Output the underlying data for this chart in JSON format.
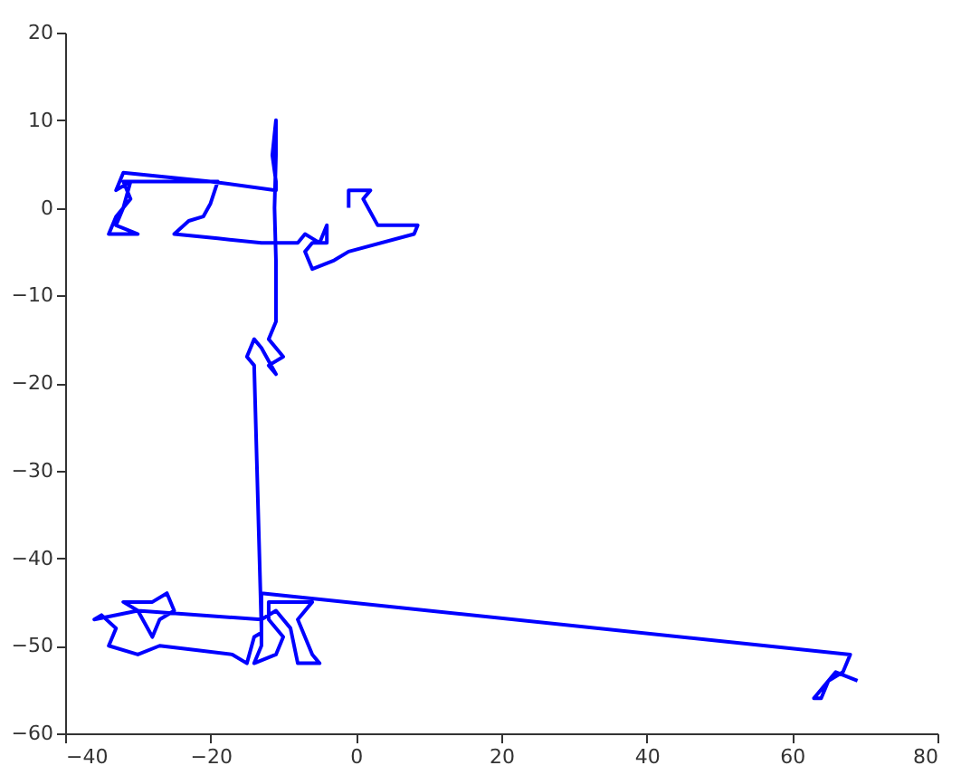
{
  "chart_data": {
    "type": "line",
    "xlim": [
      -40,
      80
    ],
    "ylim": [
      -60,
      20
    ],
    "xticks": [
      -40,
      -20,
      0,
      20,
      40,
      60,
      80
    ],
    "yticks": [
      -60,
      -50,
      -40,
      -30,
      -20,
      -10,
      0,
      10,
      20
    ],
    "grid": false,
    "marker": "none",
    "line_style": "solid",
    "series": [
      {
        "color": "#0000ff",
        "x": [
          -1,
          -1,
          2,
          1,
          3,
          8.5,
          8,
          -1,
          -3,
          -6,
          -7,
          -6,
          -4,
          -4,
          -5,
          -6,
          -7,
          -8,
          -13,
          -19,
          -25,
          -23,
          -21,
          -20,
          -19,
          -28,
          -32,
          -31,
          -33,
          -34,
          -30,
          -33,
          -32,
          -31,
          -33,
          -32,
          -20,
          -11,
          -11,
          -11.5,
          -11,
          -11,
          -11.2,
          -11,
          -11,
          -12,
          -10,
          -12,
          -11,
          -13,
          -14,
          -15,
          -14,
          -13,
          -13,
          -14,
          -11,
          -10,
          -12,
          -12,
          -6,
          -8,
          -6,
          -5,
          -8,
          -9,
          -11,
          -13,
          -30,
          -32,
          -28,
          -26,
          -25,
          -27,
          -28,
          -30,
          -36,
          -35,
          -33,
          -34,
          -30,
          -27,
          -22,
          -17,
          -15,
          -14,
          -13,
          -13,
          68,
          67,
          65,
          64,
          63,
          66,
          69
        ],
        "values": [
          0,
          2,
          2,
          1,
          -2,
          -2,
          -3,
          -5,
          -6,
          -7,
          -5,
          -4,
          -4,
          -2,
          -4,
          -3.5,
          -3,
          -4,
          -4,
          -3.5,
          -3,
          -1.5,
          -1,
          0.5,
          3,
          3,
          3,
          1,
          -1,
          -3,
          -3,
          -2,
          0,
          3,
          2,
          4,
          3,
          2,
          3,
          6,
          10,
          6,
          0,
          -6,
          -13,
          -15,
          -17,
          -18,
          -19,
          -16,
          -15,
          -17,
          -18,
          -48,
          -50,
          -52,
          -51,
          -49,
          -47,
          -45,
          -45,
          -47,
          -51,
          -52,
          -52,
          -48,
          -46,
          -47,
          -46,
          -45,
          -45,
          -44,
          -46,
          -47,
          -49,
          -46,
          -47,
          -46.5,
          -48,
          -50,
          -51,
          -50,
          -50.5,
          -51,
          -52,
          -49,
          -48.5,
          -44,
          -51,
          -53,
          -54,
          -56,
          -56,
          -53,
          -54
        ]
      }
    ]
  }
}
